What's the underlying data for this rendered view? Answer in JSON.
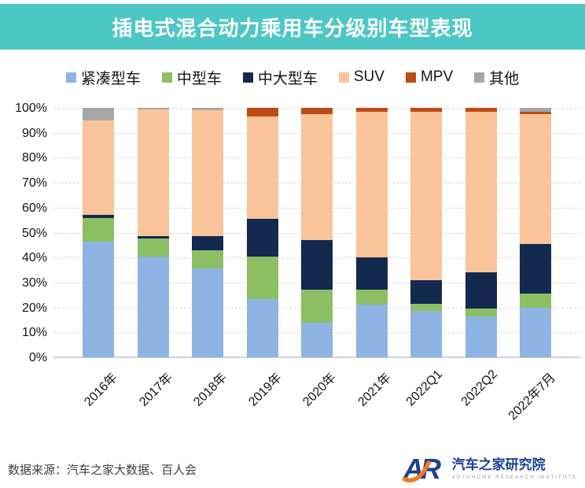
{
  "title": "插电式混合动力乘用车分级别车型表现",
  "colors": {
    "header_bg": "#4CC7C4",
    "title_text": "#FFFFFF",
    "grid": "#D6D6D6",
    "logo_blue": "#1D3F96",
    "logo_orange": "#EE7B23"
  },
  "chart_data": {
    "type": "bar",
    "subtype": "stacked-100-percent",
    "title": "插电式混合动力乘用车分级别车型表现",
    "xlabel": "",
    "ylabel": "",
    "ylim": [
      0,
      100
    ],
    "yticks": [
      "0%",
      "10%",
      "20%",
      "30%",
      "40%",
      "50%",
      "60%",
      "70%",
      "80%",
      "90%",
      "100%"
    ],
    "grid": "horizontal-dashed",
    "legend_position": "top",
    "categories": [
      "2016年",
      "2017年",
      "2018年",
      "2019年",
      "2020年",
      "2021年",
      "2022Q1",
      "2022Q2",
      "2022年7月"
    ],
    "series": [
      {
        "name": "紧凑型车",
        "color": "#8DB4E2",
        "values": [
          46.5,
          40.5,
          35.5,
          23.5,
          14,
          21,
          18.5,
          16.5,
          20
        ]
      },
      {
        "name": "中型车",
        "color": "#8CBE64",
        "values": [
          9.5,
          7,
          7.5,
          17,
          13,
          6,
          3,
          3,
          5.5
        ]
      },
      {
        "name": "中大型车",
        "color": "#13294E",
        "values": [
          1,
          1,
          5.5,
          15,
          20,
          13,
          9.5,
          14.5,
          20
        ]
      },
      {
        "name": "SUV",
        "color": "#F9C499",
        "values": [
          38,
          51,
          50.5,
          41,
          50.5,
          58.5,
          67.5,
          64.5,
          52
        ]
      },
      {
        "name": "MPV",
        "color": "#BE4B16",
        "values": [
          0,
          0,
          0,
          3.5,
          2.5,
          1.5,
          1.5,
          1.5,
          1
        ]
      },
      {
        "name": "其他",
        "color": "#A6A6A6",
        "values": [
          5,
          0.5,
          1,
          0,
          0,
          0,
          0,
          0,
          1.5
        ]
      }
    ]
  },
  "footer": {
    "source": "数据来源：汽车之家大数据、百人会"
  },
  "logo": {
    "monogram": "AR",
    "name": "汽车之家研究院",
    "subtitle": "AUTOHOME RESEARCH INSTITUTE"
  }
}
